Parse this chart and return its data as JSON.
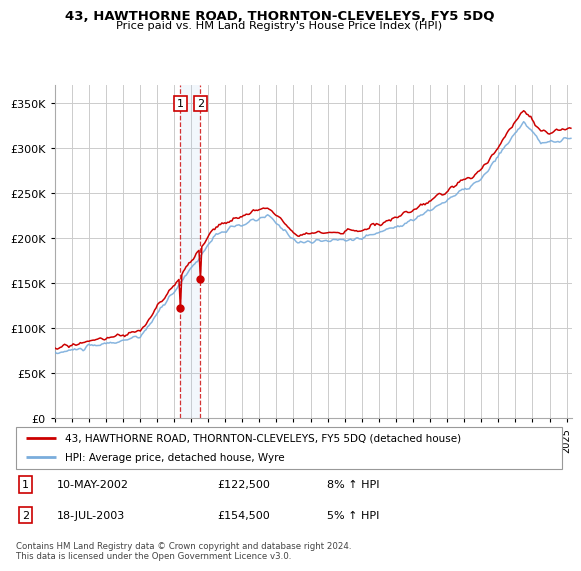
{
  "title": "43, HAWTHORNE ROAD, THORNTON-CLEVELEYS, FY5 5DQ",
  "subtitle": "Price paid vs. HM Land Registry's House Price Index (HPI)",
  "legend_line1": "43, HAWTHORNE ROAD, THORNTON-CLEVELEYS, FY5 5DQ (detached house)",
  "legend_line2": "HPI: Average price, detached house, Wyre",
  "transaction1_date": "10-MAY-2002",
  "transaction1_price": "£122,500",
  "transaction1_hpi": "8% ↑ HPI",
  "transaction1_year": 2002.37,
  "transaction1_value": 122500,
  "transaction2_date": "18-JUL-2003",
  "transaction2_price": "£154,500",
  "transaction2_hpi": "5% ↑ HPI",
  "transaction2_year": 2003.54,
  "transaction2_value": 154500,
  "footer": "Contains HM Land Registry data © Crown copyright and database right 2024.\nThis data is licensed under the Open Government Licence v3.0.",
  "red_color": "#cc0000",
  "blue_color": "#7aaddc",
  "grid_color": "#cccccc",
  "background_color": "#ffffff",
  "ylim": [
    0,
    370000
  ],
  "yticks": [
    0,
    50000,
    100000,
    150000,
    200000,
    250000,
    300000,
    350000
  ],
  "xlim_start": 1995,
  "xlim_end": 2025.3
}
